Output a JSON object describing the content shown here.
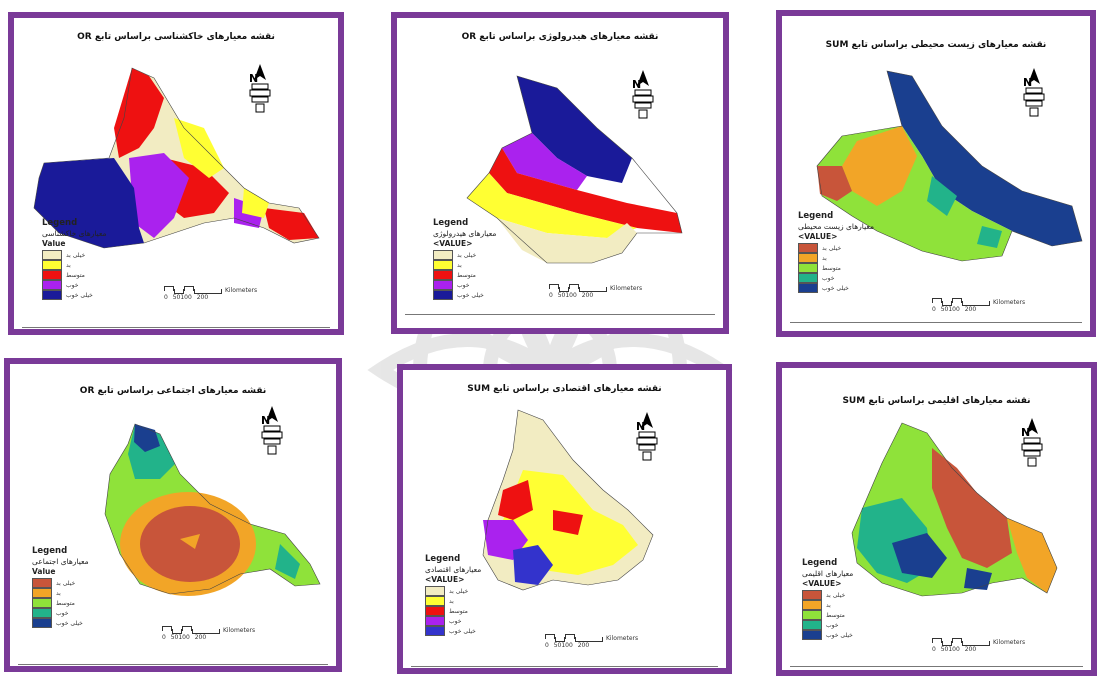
{
  "maps": [
    {
      "id": "soil",
      "title": "نقشه معیارهای خاکشناسی براساس تابع OR",
      "legend_heading": "Legend",
      "legend_title": "معیارهای خاکشناسی",
      "legend_field": "Value",
      "classes": [
        "خیلی بد",
        "بد",
        "متوسط",
        "خوب",
        "خیلی خوب"
      ],
      "colors": [
        "#f2ecc2",
        "#ffff33",
        "#ee1111",
        "#aa22ee",
        "#1a1a99"
      ],
      "scale_numbers": "0 50100 200",
      "scale_unit": "Kilometers"
    },
    {
      "id": "hydrology",
      "title": "نقشه معیارهای هیدرولوژی براساس تابع OR",
      "legend_heading": "Legend",
      "legend_title": "معیارهای هیدرولوژی",
      "legend_field": "<VALUE>",
      "classes": [
        "خیلی بد",
        "بد",
        "متوسط",
        "خوب",
        "خیلی خوب"
      ],
      "colors": [
        "#f2ecc2",
        "#ffff33",
        "#ee1111",
        "#aa22ee",
        "#1a1a99"
      ],
      "scale_numbers": "0 50100 200",
      "scale_unit": "Kilometers"
    },
    {
      "id": "environmental",
      "title": "نقشه معیارهای زیست محیطی براساس تابع SUM",
      "legend_heading": "Legend",
      "legend_title": "معیارهای زیست محیطی",
      "legend_field": "<VALUE>",
      "classes": [
        "خیلی بد",
        "بد",
        "متوسط",
        "خوب",
        "خیلی خوب"
      ],
      "colors": [
        "#c8553a",
        "#f2a527",
        "#8fe23a",
        "#22b38a",
        "#1a3f8f"
      ],
      "scale_numbers": "0 50100 200",
      "scale_unit": "Kilometers"
    },
    {
      "id": "social",
      "title": "نقشه معیارهای اجتماعی براساس تابع OR",
      "legend_heading": "Legend",
      "legend_title": "معیارهای اجتماعی",
      "legend_field": "Value",
      "classes": [
        "خیلی بد",
        "بد",
        "متوسط",
        "خوب",
        "خیلی خوب"
      ],
      "colors": [
        "#c8553a",
        "#f2a527",
        "#8fe23a",
        "#22b38a",
        "#1a3f8f"
      ],
      "scale_numbers": "0 50100 200",
      "scale_unit": "Kilometers"
    },
    {
      "id": "economic",
      "title": "نقشه معیارهای اقتصادی براساس تابع SUM",
      "legend_heading": "Legend",
      "legend_title": "معیارهای اقتصادی",
      "legend_field": "<VALUE>",
      "classes": [
        "خیلی بد",
        "بد",
        "متوسط",
        "خوب",
        "خیلی خوب"
      ],
      "colors": [
        "#f2ecc2",
        "#ffff33",
        "#ee1111",
        "#aa22ee",
        "#3333cc"
      ],
      "scale_numbers": "0 50100 200",
      "scale_unit": "Kilometers"
    },
    {
      "id": "climatic",
      "title": "نقشه معیارهای اقلیمی براساس تابع SUM",
      "legend_heading": "Legend",
      "legend_title": "معیارهای اقلیمی",
      "legend_field": "<VALUE>",
      "classes": [
        "خیلی بد",
        "بد",
        "متوسط",
        "خوب",
        "خیلی خوب"
      ],
      "colors": [
        "#c8553a",
        "#f2a527",
        "#8fe23a",
        "#22b38a",
        "#1a3f8f"
      ],
      "scale_numbers": "0 50100 200",
      "scale_unit": "Kilometers"
    }
  ],
  "north_label": "N",
  "icons": [
    "north-arrow-icon",
    "scale-bar-icon"
  ]
}
